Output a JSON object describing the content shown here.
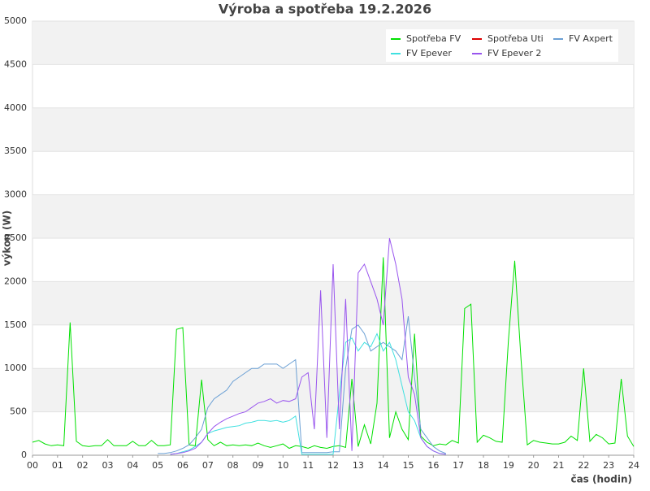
{
  "chart_data": {
    "type": "line",
    "title": "Výroba a spotřeba 19.2.2026",
    "x_label": "čas (hodin)",
    "y_label": "výkon (W)",
    "xlim": [
      0,
      24
    ],
    "ylim": [
      0,
      5000
    ],
    "xticks": [
      {
        "value": 0,
        "label": "00"
      },
      {
        "value": 1,
        "label": "01"
      },
      {
        "value": 2,
        "label": "02"
      },
      {
        "value": 3,
        "label": "03"
      },
      {
        "value": 4,
        "label": "04"
      },
      {
        "value": 5,
        "label": "05"
      },
      {
        "value": 6,
        "label": "06"
      },
      {
        "value": 7,
        "label": "07"
      },
      {
        "value": 8,
        "label": "08"
      },
      {
        "value": 9,
        "label": "09"
      },
      10,
      11,
      12,
      13,
      14,
      15,
      16,
      17,
      18,
      19,
      20,
      21,
      22,
      23,
      24
    ],
    "yticks": [
      0,
      500,
      1000,
      1500,
      2000,
      2500,
      3000,
      3500,
      4000,
      4500,
      5000
    ],
    "grid": true,
    "legend": "upper right",
    "x": [
      0,
      0.25,
      0.5,
      0.75,
      1,
      1.25,
      1.5,
      1.75,
      2,
      2.25,
      2.5,
      2.75,
      3,
      3.25,
      3.5,
      3.75,
      4,
      4.25,
      4.5,
      4.75,
      5,
      5.25,
      5.5,
      5.75,
      6,
      6.25,
      6.5,
      6.75,
      7,
      7.25,
      7.5,
      7.75,
      8,
      8.25,
      8.5,
      8.75,
      9,
      9.25,
      9.5,
      9.75,
      10,
      10.25,
      10.5,
      10.75,
      11,
      11.25,
      11.5,
      11.75,
      12,
      12.25,
      12.5,
      12.75,
      13,
      13.25,
      13.5,
      13.75,
      14,
      14.25,
      14.5,
      14.75,
      15,
      15.25,
      15.5,
      15.75,
      16,
      16.25,
      16.5,
      16.75,
      17,
      17.25,
      17.5,
      17.75,
      18,
      18.25,
      18.5,
      18.75,
      19,
      19.25,
      19.5,
      19.75,
      20,
      20.25,
      20.5,
      20.75,
      21,
      21.25,
      21.5,
      21.75,
      22,
      22.25,
      22.5,
      22.75,
      23,
      23.25,
      23.5,
      23.75,
      24
    ],
    "series": [
      {
        "name": "Spotřeba FV",
        "color": "#00e000",
        "values": [
          150,
          170,
          130,
          110,
          120,
          110,
          1530,
          160,
          110,
          100,
          110,
          110,
          180,
          110,
          110,
          110,
          160,
          110,
          110,
          170,
          110,
          110,
          120,
          1450,
          1470,
          120,
          110,
          870,
          180,
          110,
          150,
          110,
          120,
          110,
          120,
          110,
          140,
          110,
          90,
          110,
          130,
          80,
          110,
          100,
          80,
          110,
          90,
          80,
          100,
          110,
          90,
          880,
          100,
          350,
          130,
          600,
          2280,
          200,
          500,
          300,
          180,
          1400,
          220,
          150,
          110,
          130,
          120,
          170,
          140,
          1690,
          1740,
          150,
          230,
          200,
          160,
          150,
          1330,
          2240,
          1100,
          120,
          170,
          150,
          140,
          130,
          130,
          150,
          220,
          170,
          1000,
          160,
          240,
          200,
          130,
          140,
          880,
          220,
          100
        ]
      },
      {
        "name": "Spotřeba Uti",
        "color": "#dd0000",
        "values": [
          null,
          null,
          null,
          null,
          null,
          null,
          null,
          null,
          null,
          null,
          null,
          null,
          null,
          null,
          null,
          null,
          null,
          null,
          null,
          null,
          null,
          null,
          null,
          null,
          null,
          null,
          null,
          null,
          null,
          null,
          null,
          null,
          null,
          null,
          null,
          null,
          null,
          null,
          null,
          null,
          null,
          null,
          null,
          null,
          null,
          null,
          null,
          null,
          null,
          null,
          null,
          null,
          null,
          null,
          null,
          null,
          null,
          null,
          null,
          null,
          null,
          null,
          null,
          null,
          null,
          null,
          null,
          null,
          null,
          null,
          null,
          null,
          null,
          null,
          null,
          null,
          null,
          null,
          null,
          null,
          null,
          null,
          null,
          null,
          null,
          null,
          null,
          null,
          null,
          null,
          null,
          null,
          null,
          null,
          null,
          null,
          null
        ]
      },
      {
        "name": "FV Axpert",
        "color": "#6a9fd4",
        "values": [
          null,
          null,
          null,
          null,
          null,
          null,
          null,
          null,
          null,
          null,
          null,
          null,
          null,
          null,
          null,
          null,
          null,
          null,
          null,
          null,
          20,
          20,
          30,
          50,
          80,
          120,
          200,
          300,
          550,
          650,
          700,
          750,
          850,
          900,
          950,
          1000,
          1000,
          1050,
          1050,
          1050,
          1000,
          1050,
          1100,
          30,
          30,
          30,
          30,
          30,
          40,
          40,
          1000,
          1450,
          1500,
          1400,
          1200,
          1250,
          1300,
          1250,
          1200,
          1100,
          1600,
          900,
          300,
          200,
          100,
          50,
          20,
          null,
          null,
          null,
          null,
          null,
          null,
          null,
          null,
          null,
          null,
          null,
          null,
          null,
          null,
          null,
          null,
          null,
          null,
          null,
          null,
          null,
          null,
          null,
          null,
          null,
          null,
          null,
          null,
          null,
          null
        ]
      },
      {
        "name": "FV Epever",
        "color": "#40e0e0",
        "values": [
          null,
          null,
          null,
          null,
          null,
          null,
          null,
          null,
          null,
          null,
          null,
          null,
          null,
          null,
          null,
          null,
          null,
          null,
          null,
          null,
          null,
          null,
          10,
          20,
          40,
          60,
          100,
          150,
          250,
          280,
          300,
          320,
          330,
          340,
          370,
          380,
          400,
          400,
          390,
          400,
          380,
          400,
          450,
          10,
          10,
          10,
          10,
          10,
          10,
          700,
          1300,
          1350,
          1200,
          1300,
          1250,
          1400,
          1200,
          1300,
          1100,
          800,
          500,
          400,
          200,
          100,
          50,
          20,
          10,
          null,
          null,
          null,
          null,
          null,
          null,
          null,
          null,
          null,
          null,
          null,
          null,
          null,
          null,
          null,
          null,
          null,
          null,
          null,
          null,
          null,
          null,
          null,
          null,
          null,
          null,
          null,
          null,
          null,
          null
        ]
      },
      {
        "name": "FV Epever 2",
        "color": "#9955ee",
        "values": [
          null,
          null,
          null,
          null,
          null,
          null,
          null,
          null,
          null,
          null,
          null,
          null,
          null,
          null,
          null,
          null,
          null,
          null,
          null,
          null,
          null,
          null,
          10,
          20,
          30,
          50,
          80,
          150,
          250,
          330,
          380,
          420,
          450,
          480,
          500,
          550,
          600,
          620,
          650,
          600,
          630,
          620,
          650,
          900,
          950,
          300,
          1900,
          200,
          2200,
          300,
          1800,
          50,
          2100,
          2200,
          2000,
          1800,
          1500,
          2500,
          2200,
          1800,
          900,
          700,
          200,
          100,
          50,
          20,
          10,
          null,
          null,
          null,
          null,
          null,
          null,
          null,
          null,
          null,
          null,
          null,
          null,
          null,
          null,
          null,
          null,
          null,
          null,
          null,
          null,
          null,
          null,
          null,
          null,
          null,
          null,
          null,
          null,
          null,
          null
        ]
      }
    ]
  }
}
